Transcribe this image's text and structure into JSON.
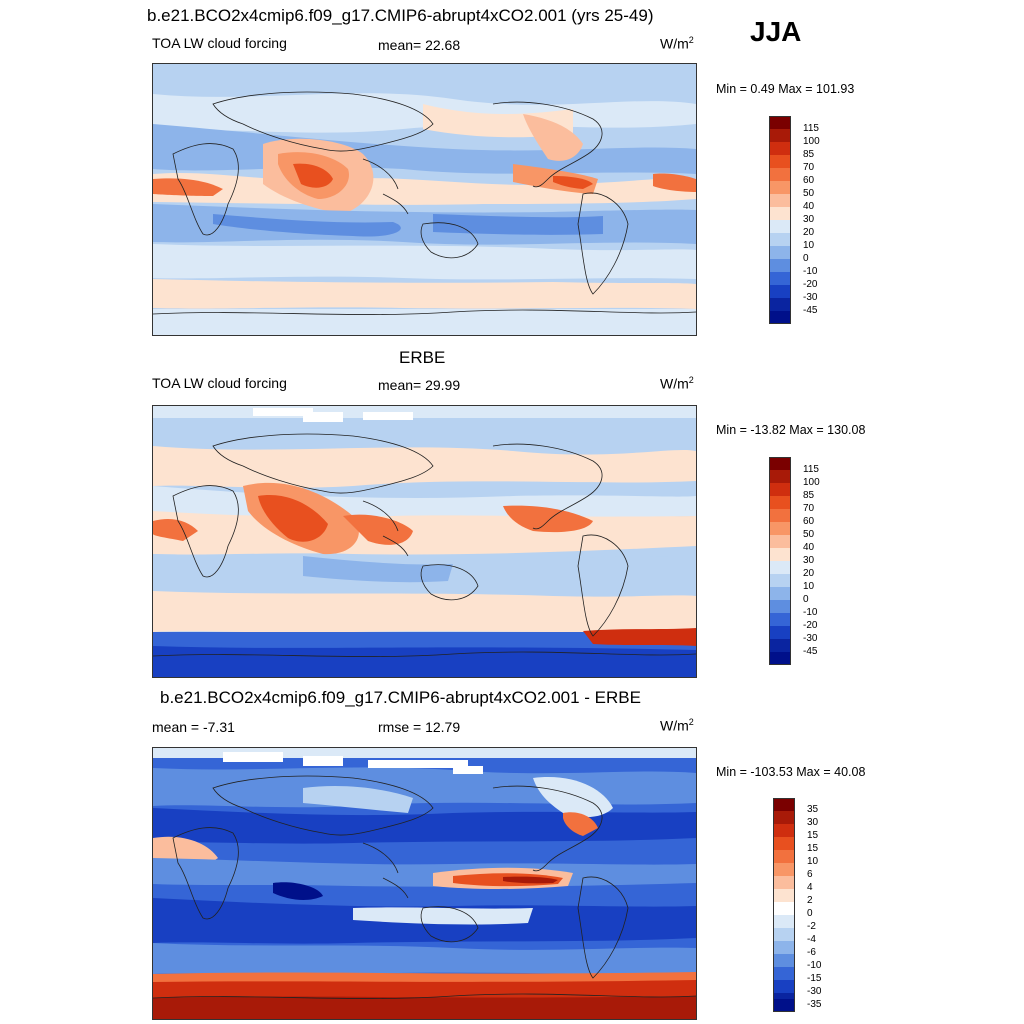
{
  "season": "JJA",
  "panels": [
    {
      "title": "b.e21.BCO2x4cmip6.f09_g17.CMIP6-abrupt4xCO2.001 (yrs 25-49)",
      "left_label": "TOA LW cloud forcing",
      "center_label": "mean=  22.68",
      "units": "W/m²",
      "minmax": "Min =   0.49 Max = 101.93",
      "colorbar_labels": [
        "115",
        "100",
        "85",
        "70",
        "60",
        "50",
        "40",
        "30",
        "20",
        "10",
        "0",
        "-10",
        "-20",
        "-30",
        "-45"
      ]
    },
    {
      "title": "ERBE",
      "left_label": "TOA LW cloud forcing",
      "center_label": "mean=  29.99",
      "units": "W/m²",
      "minmax": "Min = -13.82 Max = 130.08",
      "colorbar_labels": [
        "115",
        "100",
        "85",
        "70",
        "60",
        "50",
        "40",
        "30",
        "20",
        "10",
        "0",
        "-10",
        "-20",
        "-30",
        "-45"
      ]
    },
    {
      "title": "b.e21.BCO2x4cmip6.f09_g17.CMIP6-abrupt4xCO2.001 - ERBE",
      "left_label": "mean =  -7.31",
      "center_label": "rmse =  12.79",
      "units": "W/m²",
      "minmax": "Min = -103.53 Max =  40.08",
      "colorbar_labels": [
        "35",
        "30",
        "15",
        "15",
        "10",
        "6",
        "4",
        "2",
        "0",
        "-2",
        "-4",
        "-6",
        "-10",
        "-15",
        "-30",
        "-35"
      ]
    }
  ],
  "colors": {
    "abs_scale": [
      "#7a0000",
      "#a81a08",
      "#cf2e0f",
      "#e8501f",
      "#f2713e",
      "#f89666",
      "#fbbd9d",
      "#fde3d0",
      "#dbe9f7",
      "#b7d2f1",
      "#8db4ea",
      "#5e8ee0",
      "#3565d6",
      "#1840c2",
      "#0a24a0",
      "#00108a"
    ],
    "diff_scale": [
      "#7a0000",
      "#a81a08",
      "#cf2e0f",
      "#e8501f",
      "#f2713e",
      "#f89666",
      "#fbbd9d",
      "#fde3d0",
      "#ffffff",
      "#dbe9f7",
      "#b7d2f1",
      "#8db4ea",
      "#5e8ee0",
      "#3565d6",
      "#1840c2",
      "#0a24a0",
      "#00108a"
    ]
  }
}
